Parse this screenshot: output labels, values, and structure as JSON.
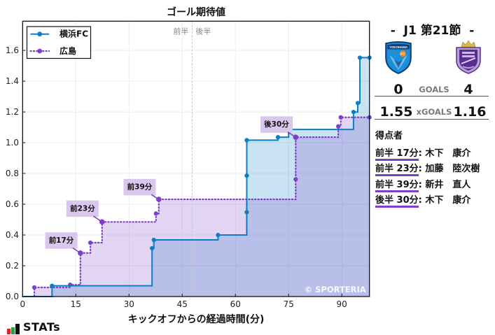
{
  "chart_data": {
    "type": "line",
    "subtype": "step",
    "title": "ゴール期待値",
    "xlabel": "キックオフからの経過時間(分)",
    "ylabel": "",
    "xlim": [
      0,
      97.8
    ],
    "ylim": [
      0,
      1.79
    ],
    "xticks": [
      0,
      15,
      30,
      45,
      60,
      75,
      90
    ],
    "xtick_labels": [
      "0",
      "15",
      "30",
      "45",
      "60",
      "75",
      "90"
    ],
    "yticks": [
      0,
      0.2,
      0.4,
      0.6,
      0.8,
      1.0,
      1.2,
      1.4,
      1.6
    ],
    "ytick_labels": [
      "0.0",
      "0.2",
      "0.4",
      "0.6",
      "0.8",
      "1.0",
      "1.2",
      "1.4",
      "1.6"
    ],
    "grid": true,
    "legend_position": "upper left",
    "halftime": {
      "minute": 47.8,
      "first_half_label": "前半",
      "second_half_label": "後半"
    },
    "series": [
      {
        "name": "横浜FC",
        "color": "#0a7fc6",
        "fill": "#0a7fc6",
        "line_style": "solid",
        "points": [
          [
            0,
            0
          ],
          [
            8.3,
            0.07
          ],
          [
            36.5,
            0.314
          ],
          [
            37.0,
            0.368
          ],
          [
            55.1,
            0.4
          ],
          [
            63.2,
            0.548
          ],
          [
            63.2,
            0.786
          ],
          [
            63.2,
            1.017
          ],
          [
            72.0,
            1.036
          ],
          [
            75.0,
            1.086
          ],
          [
            93.3,
            1.2
          ],
          [
            94.5,
            1.258
          ],
          [
            95.1,
            1.553
          ]
        ],
        "final_value": 1.55
      },
      {
        "name": "広島",
        "color": "#7d3fc9",
        "fill": "#7d3fc9",
        "line_style": "dotted",
        "points": [
          [
            0,
            0
          ],
          [
            3.3,
            0.059
          ],
          [
            13.4,
            0.077
          ],
          [
            16.3,
            0.283
          ],
          [
            19.1,
            0.35
          ],
          [
            22.4,
            0.485
          ],
          [
            37.6,
            0.54
          ],
          [
            38.4,
            0.632
          ],
          [
            77.0,
            0.762
          ],
          [
            77.0,
            1.036
          ],
          [
            89.0,
            1.106
          ],
          [
            89.7,
            1.165
          ]
        ],
        "final_value": 1.16
      }
    ],
    "annotations": [
      {
        "label": "前17分",
        "series": 1,
        "x": 16.3,
        "y": 0.283,
        "text_x": 10.9,
        "text_y": 0.364
      },
      {
        "label": "前23分",
        "series": 1,
        "x": 22.4,
        "y": 0.485,
        "text_x": 16.9,
        "text_y": 0.571
      },
      {
        "label": "前39分",
        "series": 1,
        "x": 38.4,
        "y": 0.632,
        "text_x": 33.0,
        "text_y": 0.711
      },
      {
        "label": "後30分",
        "series": 1,
        "x": 77.0,
        "y": 1.036,
        "text_x": 71.6,
        "text_y": 1.118
      }
    ],
    "annotation_box_color": "#d9c7ee",
    "watermark": "© SPORTERIA"
  },
  "match": {
    "round_title": "-  J1 第21節  -",
    "home": {
      "name": "横浜FC",
      "goals": "0",
      "xgoals": "1.55",
      "logo_icon": "yokohama-fc-crest"
    },
    "away": {
      "name": "広島",
      "goals": "4",
      "xgoals": "1.16",
      "logo_icon": "sanfrecce-hiroshima-crest"
    },
    "goals_label": "GOALS",
    "xgoals_label": "xGOALS"
  },
  "scorers": {
    "title": "得点者",
    "items": [
      {
        "time": "前半 17分",
        "name": ": 木下　康介"
      },
      {
        "time": "前半 23分",
        "name": ": 加藤　陸次樹"
      },
      {
        "time": "前半 39分",
        "name": ": 新井　直人"
      },
      {
        "time": "後半 30分",
        "name": ": 木下　康介"
      }
    ],
    "underline_color": "#7b3fc8"
  },
  "brand": {
    "label": "STATs",
    "bar_colors": [
      "#e02424",
      "#1fa34a",
      "#111111"
    ]
  }
}
